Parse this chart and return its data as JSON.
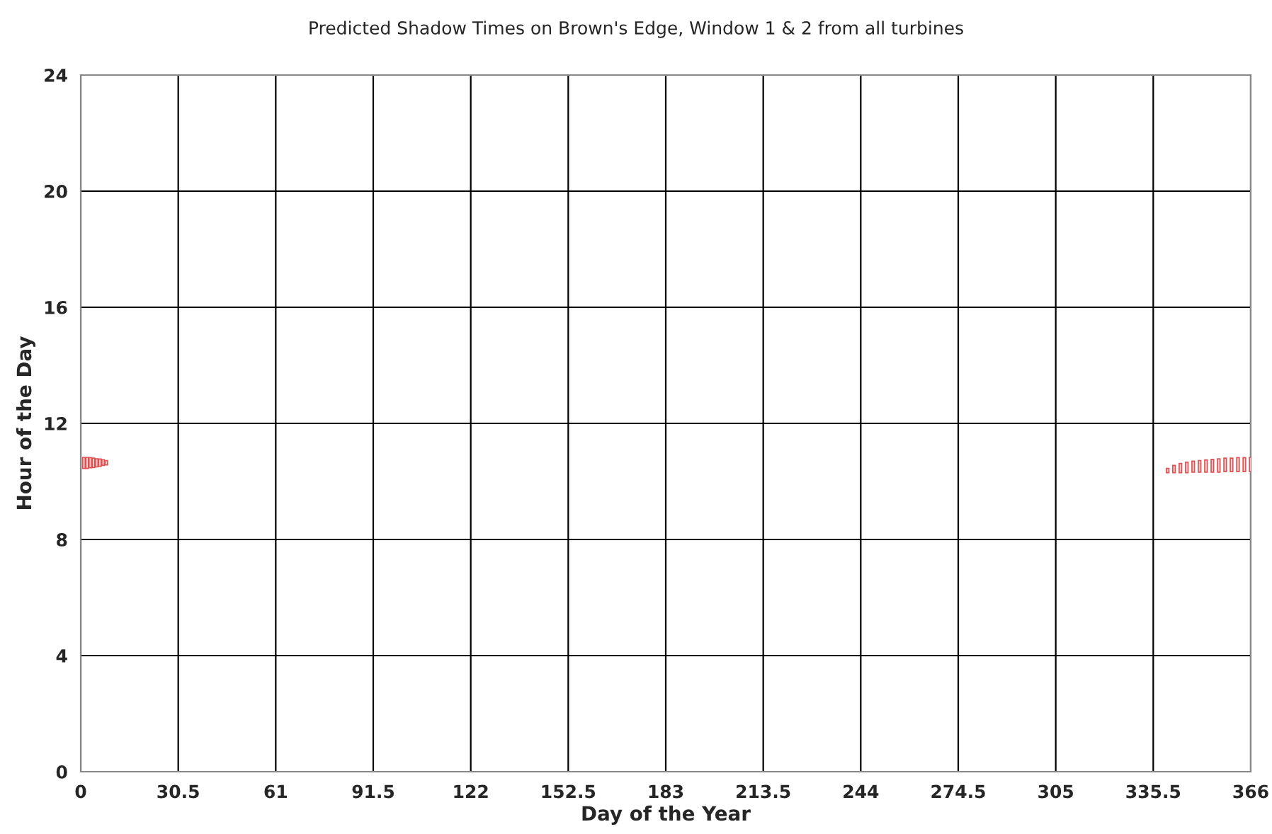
{
  "chart_data": {
    "type": "bar",
    "title": "Predicted Shadow Times on Brown's Edge, Window 1 & 2 from all turbines",
    "xlabel": "Day of the Year",
    "ylabel": "Hour of the Day",
    "x": [
      1,
      2,
      3,
      4,
      5,
      6,
      7,
      8,
      340,
      342,
      344,
      346,
      348,
      350,
      352,
      354,
      356,
      358,
      360,
      362,
      364,
      366
    ],
    "base": [
      10.45,
      10.45,
      10.47,
      10.48,
      10.5,
      10.52,
      10.55,
      10.57,
      10.3,
      10.3,
      10.3,
      10.3,
      10.32,
      10.32,
      10.32,
      10.32,
      10.32,
      10.34,
      10.34,
      10.34,
      10.34,
      10.34
    ],
    "values": [
      0.38,
      0.38,
      0.35,
      0.32,
      0.28,
      0.25,
      0.2,
      0.15,
      0.15,
      0.25,
      0.32,
      0.36,
      0.38,
      0.4,
      0.42,
      0.44,
      0.46,
      0.46,
      0.46,
      0.48,
      0.48,
      0.49
    ],
    "color": "#e05050",
    "xlim": [
      0,
      366
    ],
    "xticks": [
      0,
      30.5,
      61,
      91.5,
      122,
      152.5,
      183,
      213.5,
      244,
      274.5,
      305,
      335.5,
      366
    ],
    "ylim": [
      0,
      24
    ],
    "yticks": [
      0,
      4,
      8,
      12,
      16,
      20,
      24
    ],
    "grid": true
  }
}
